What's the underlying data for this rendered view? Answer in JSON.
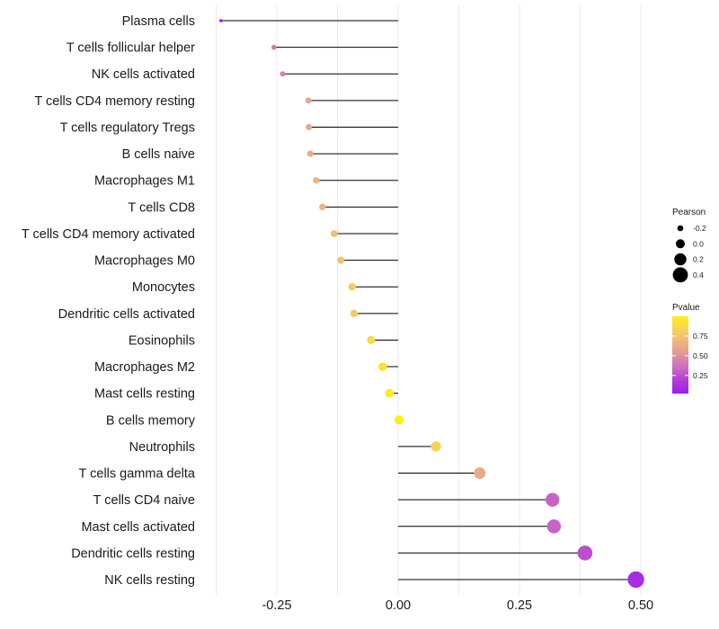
{
  "chart_data": {
    "type": "lollipop",
    "orientation": "horizontal",
    "xlabel": "",
    "ylabel": "",
    "xlim": [
      -0.375,
      0.51
    ],
    "xticks": [
      -0.25,
      0.0,
      0.25,
      0.5
    ],
    "xtick_labels": [
      "-0.25",
      "0.00",
      "0.25",
      "0.50"
    ],
    "categories": [
      "Plasma cells",
      "T cells follicular helper",
      "NK cells activated",
      "T cells CD4 memory resting",
      "T cells regulatory  Tregs",
      "B cells naive",
      "Macrophages M1",
      "T cells CD8",
      "T cells CD4 memory activated",
      "Macrophages M0",
      "Monocytes",
      "Dendritic cells activated",
      "Eosinophils",
      "Macrophages M2",
      "Mast cells resting",
      "B cells memory",
      "Neutrophils",
      "T cells gamma delta",
      "T cells CD4 naive",
      "Mast cells activated",
      "Dendritic cells resting",
      "NK cells resting"
    ],
    "values": [
      -0.365,
      -0.256,
      -0.238,
      -0.185,
      -0.184,
      -0.181,
      -0.169,
      -0.156,
      -0.132,
      -0.118,
      -0.095,
      -0.091,
      -0.056,
      -0.032,
      -0.018,
      0.002,
      0.078,
      0.168,
      0.318,
      0.321,
      0.385,
      0.49
    ],
    "pvalues": [
      0.05,
      0.4,
      0.43,
      0.6,
      0.6,
      0.62,
      0.65,
      0.68,
      0.73,
      0.76,
      0.8,
      0.8,
      0.88,
      0.93,
      0.98,
      1.0,
      0.85,
      0.62,
      0.32,
      0.32,
      0.25,
      0.1
    ],
    "legend_size": {
      "title": "Pearson",
      "entries": [
        "-0.2",
        "0.0",
        "0.2",
        "0.4"
      ],
      "values": [
        -0.2,
        0.0,
        0.2,
        0.4
      ]
    },
    "legend_color": {
      "title": "Pvalue",
      "tick_labels": [
        "0.75",
        "0.50",
        "0.25"
      ],
      "tick_values": [
        0.75,
        0.5,
        0.25
      ],
      "range": [
        0.02,
        1.0
      ],
      "colors": [
        "#9a1ff0",
        "#b43ad6",
        "#cc6bc3",
        "#df93a0",
        "#eeb57c",
        "#f7d25c",
        "#fff010"
      ]
    },
    "line_color": "#000000",
    "grid": true,
    "legend_position": "right"
  }
}
